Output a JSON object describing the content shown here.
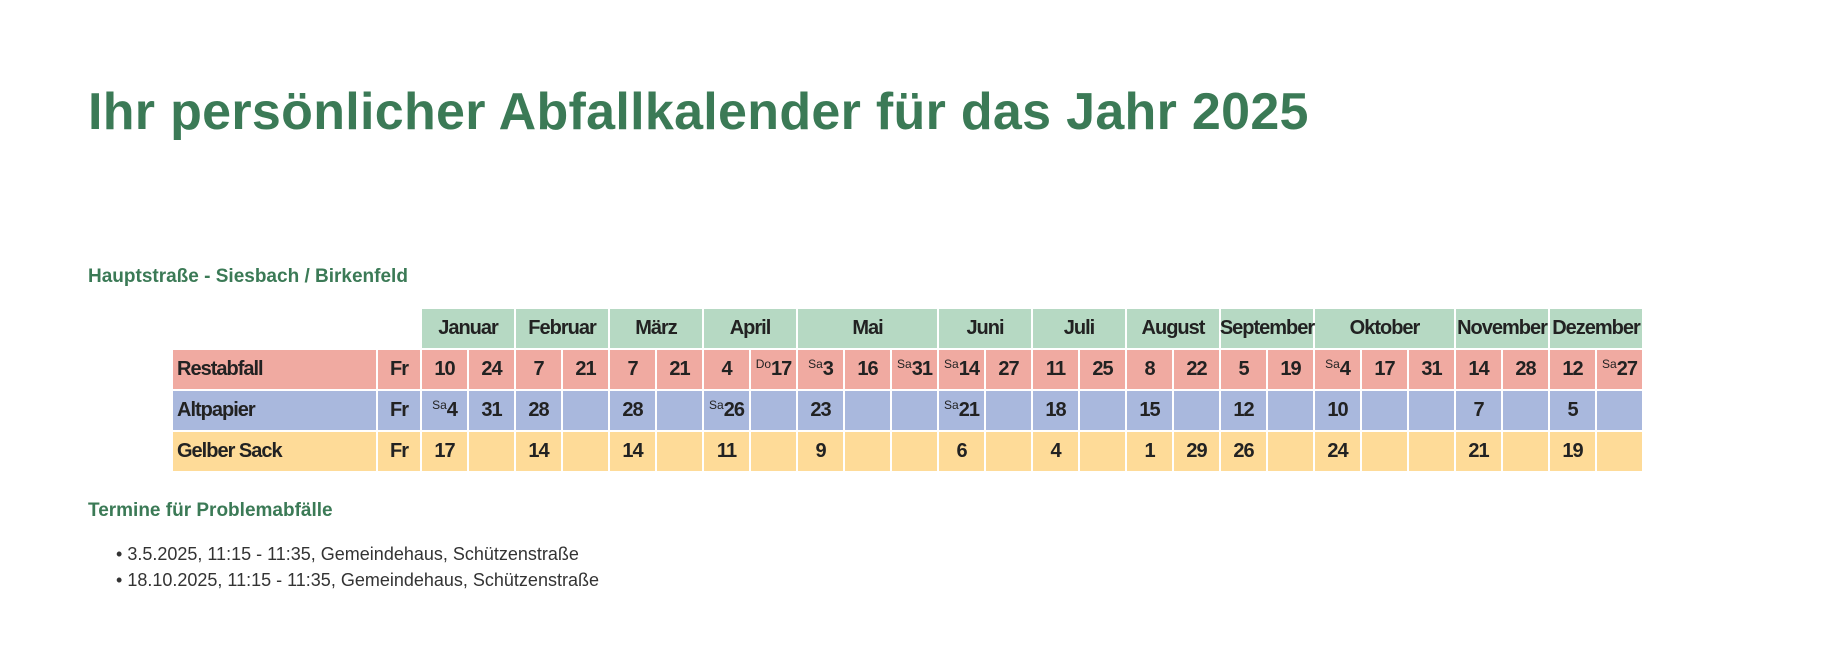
{
  "title": "Ihr persönlicher Abfallkalender für das Jahr 2025",
  "street": "Hauptstraße - Siesbach / Birkenfeld",
  "colors": {
    "title": "#3b7a56",
    "header": "#b6d9c3",
    "Restabfall": "#f0aaa1",
    "Altpapier": "#a9b8dd",
    "Gelber Sack": "#fedb98"
  },
  "months": [
    {
      "name": "Januar",
      "cols": 2
    },
    {
      "name": "Februar",
      "cols": 2
    },
    {
      "name": "März",
      "cols": 2
    },
    {
      "name": "April",
      "cols": 2
    },
    {
      "name": "Mai",
      "cols": 3
    },
    {
      "name": "Juni",
      "cols": 2
    },
    {
      "name": "Juli",
      "cols": 2
    },
    {
      "name": "August",
      "cols": 2
    },
    {
      "name": "September",
      "cols": 2
    },
    {
      "name": "Oktober",
      "cols": 3
    },
    {
      "name": "November",
      "cols": 2
    },
    {
      "name": "Dezember",
      "cols": 2
    }
  ],
  "rows": [
    {
      "label": "Restabfall",
      "weekday": "Fr",
      "cells": [
        {
          "d": "10"
        },
        {
          "d": "24"
        },
        {
          "d": "7"
        },
        {
          "d": "21"
        },
        {
          "d": "7"
        },
        {
          "d": "21"
        },
        {
          "d": "4"
        },
        {
          "p": "Do",
          "d": "17"
        },
        {
          "p": "Sa",
          "d": "3"
        },
        {
          "d": "16"
        },
        {
          "p": "Sa",
          "d": "31"
        },
        {
          "p": "Sa",
          "d": "14"
        },
        {
          "d": "27"
        },
        {
          "d": "11"
        },
        {
          "d": "25"
        },
        {
          "d": "8"
        },
        {
          "d": "22"
        },
        {
          "d": "5"
        },
        {
          "d": "19"
        },
        {
          "p": "Sa",
          "d": "4"
        },
        {
          "d": "17"
        },
        {
          "d": "31"
        },
        {
          "d": "14"
        },
        {
          "d": "28"
        },
        {
          "d": "12"
        },
        {
          "p": "Sa",
          "d": "27"
        }
      ]
    },
    {
      "label": "Altpapier",
      "weekday": "Fr",
      "cells": [
        {
          "p": "Sa",
          "d": "4"
        },
        {
          "d": "31"
        },
        {
          "d": "28"
        },
        {},
        {
          "d": "28"
        },
        {},
        {
          "p": "Sa",
          "d": "26"
        },
        {},
        {
          "d": "23"
        },
        {},
        {},
        {
          "p": "Sa",
          "d": "21"
        },
        {},
        {
          "d": "18"
        },
        {},
        {
          "d": "15"
        },
        {},
        {
          "d": "12"
        },
        {},
        {
          "d": "10"
        },
        {},
        {},
        {
          "d": "7"
        },
        {},
        {
          "d": "5"
        },
        {}
      ]
    },
    {
      "label": "Gelber Sack",
      "weekday": "Fr",
      "cells": [
        {
          "d": "17"
        },
        {},
        {
          "d": "14"
        },
        {},
        {
          "d": "14"
        },
        {},
        {
          "d": "11"
        },
        {},
        {
          "d": "9"
        },
        {},
        {},
        {
          "d": "6"
        },
        {},
        {
          "d": "4"
        },
        {},
        {
          "d": "1"
        },
        {
          "d": "29"
        },
        {
          "d": "26"
        },
        {},
        {
          "d": "24"
        },
        {},
        {},
        {
          "d": "21"
        },
        {},
        {
          "d": "19"
        },
        {}
      ]
    }
  ],
  "problem_heading": "Termine für Problemabfälle",
  "problem_dates": [
    "3.5.2025, 11:15 - 11:35, Gemeindehaus, Schützenstraße",
    "18.10.2025, 11:15 - 11:35, Gemeindehaus, Schützenstraße"
  ]
}
